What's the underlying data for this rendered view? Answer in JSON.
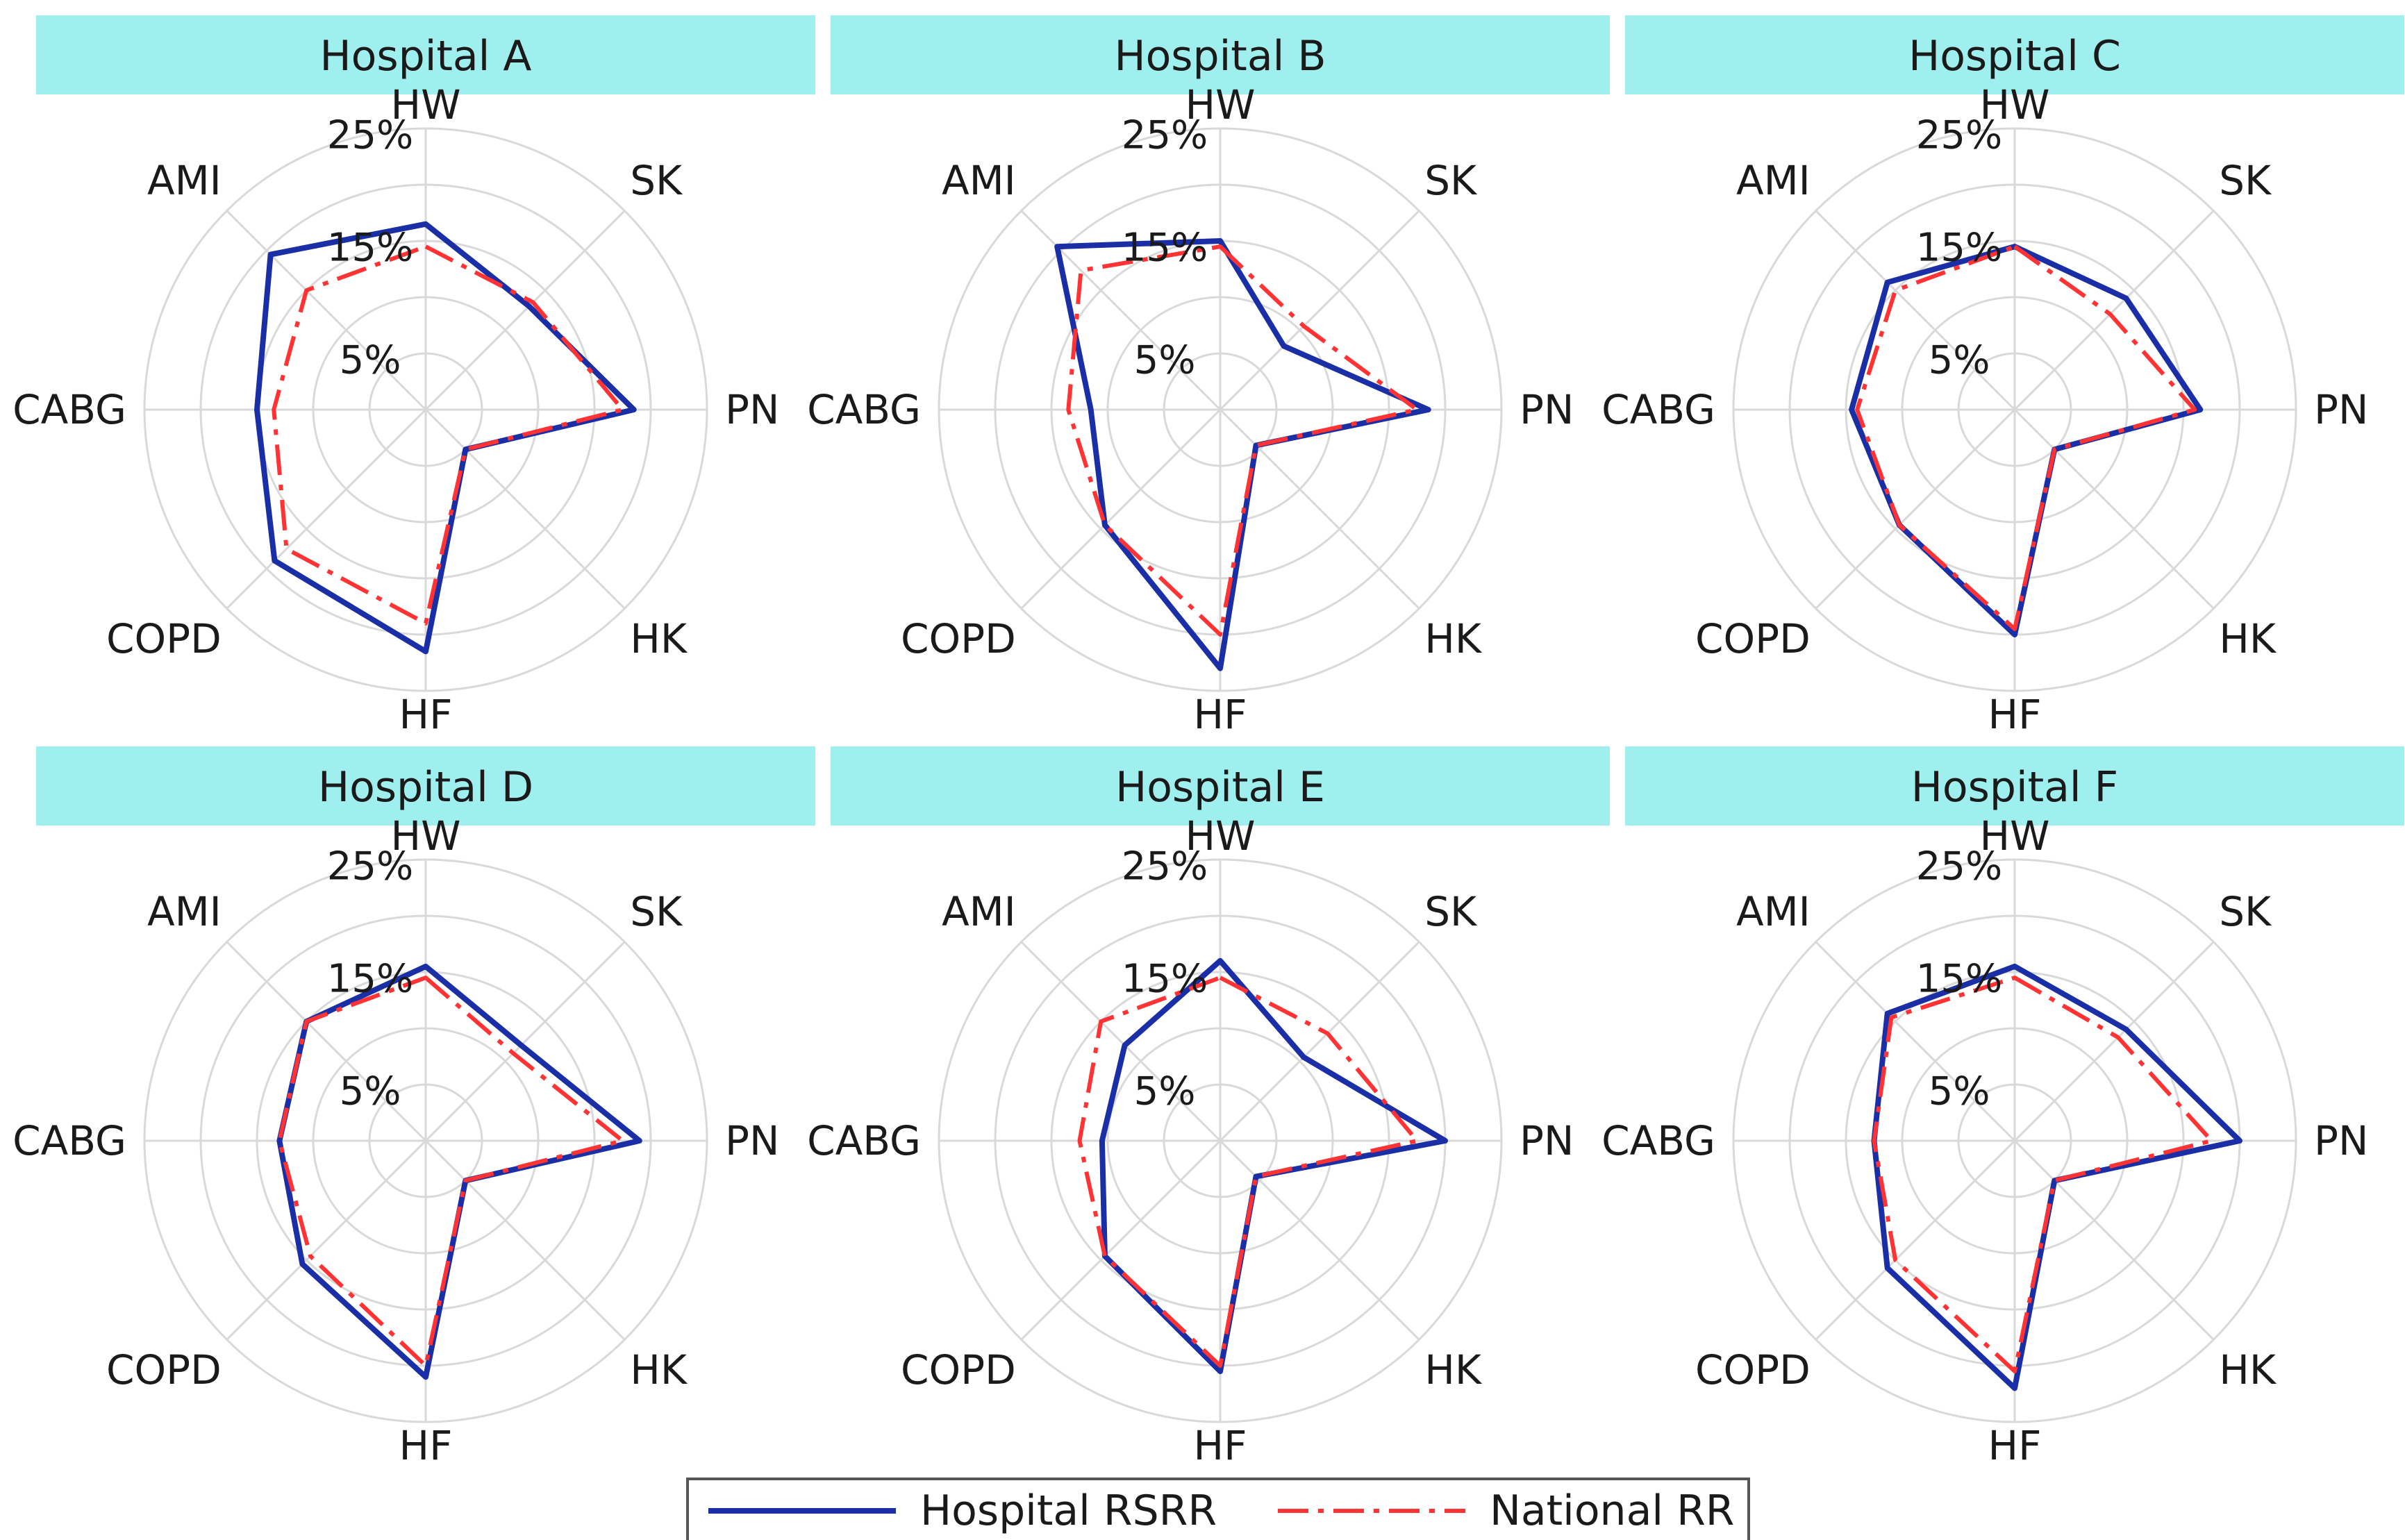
{
  "chart_data": {
    "type": "radar",
    "axes": [
      "HW",
      "SK",
      "PN",
      "HK",
      "HF",
      "COPD",
      "CABG",
      "AMI"
    ],
    "ring_values": [
      0,
      5,
      10,
      15,
      20,
      25
    ],
    "ring_labels": [
      {
        "value": 25,
        "text": "25%"
      },
      {
        "value": 15,
        "text": "15%"
      },
      {
        "value": 5,
        "text": "5%"
      }
    ],
    "rmax": 25,
    "legend": {
      "position": "bottom-center",
      "entries": [
        {
          "label": "Hospital RSRR",
          "color": "#1a2ea6",
          "style": "solid"
        },
        {
          "label": "National RR",
          "color": "#ff3333",
          "style": "dashdot"
        }
      ]
    },
    "panels": [
      {
        "title": "Hospital A",
        "series": [
          {
            "name": "Hospital RSRR",
            "values": [
              16.5,
              13.0,
              18.5,
              5.0,
              21.5,
              19.0,
              15.0,
              19.5
            ]
          },
          {
            "name": "National RR",
            "values": [
              14.5,
              13.5,
              17.5,
              5.0,
              19.0,
              17.5,
              13.5,
              15.0
            ]
          }
        ]
      },
      {
        "title": "Hospital B",
        "series": [
          {
            "name": "Hospital RSRR",
            "values": [
              15.0,
              8.0,
              18.5,
              4.5,
              23.0,
              14.5,
              11.5,
              20.5
            ]
          },
          {
            "name": "National RR",
            "values": [
              14.5,
              10.5,
              17.5,
              4.5,
              20.0,
              14.5,
              13.5,
              17.5
            ]
          }
        ]
      },
      {
        "title": "Hospital C",
        "series": [
          {
            "name": "Hospital RSRR",
            "values": [
              14.5,
              14.0,
              16.5,
              5.0,
              20.0,
              14.5,
              14.5,
              16.0
            ]
          },
          {
            "name": "National RR",
            "values": [
              14.5,
              12.0,
              16.0,
              5.0,
              19.5,
              14.5,
              14.0,
              15.0
            ]
          }
        ]
      },
      {
        "title": "Hospital D",
        "series": [
          {
            "name": "Hospital RSRR",
            "values": [
              15.5,
              12.0,
              19.0,
              5.0,
              21.0,
              15.5,
              13.0,
              15.0
            ]
          },
          {
            "name": "National RR",
            "values": [
              14.5,
              11.0,
              17.5,
              5.0,
              20.0,
              14.5,
              13.0,
              15.0
            ]
          }
        ]
      },
      {
        "title": "Hospital E",
        "series": [
          {
            "name": "Hospital RSRR",
            "values": [
              16.0,
              10.5,
              20.0,
              4.5,
              20.5,
              14.5,
              10.5,
              12.0
            ]
          },
          {
            "name": "National RR",
            "values": [
              14.5,
              13.5,
              17.5,
              4.5,
              20.0,
              14.5,
              12.5,
              15.0
            ]
          }
        ]
      },
      {
        "title": "Hospital F",
        "series": [
          {
            "name": "Hospital RSRR",
            "values": [
              15.5,
              14.0,
              20.0,
              5.0,
              22.0,
              16.0,
              12.5,
              16.0
            ]
          },
          {
            "name": "National RR",
            "values": [
              14.5,
              13.0,
              17.5,
              5.0,
              20.5,
              15.0,
              12.5,
              15.5
            ]
          }
        ]
      }
    ]
  }
}
